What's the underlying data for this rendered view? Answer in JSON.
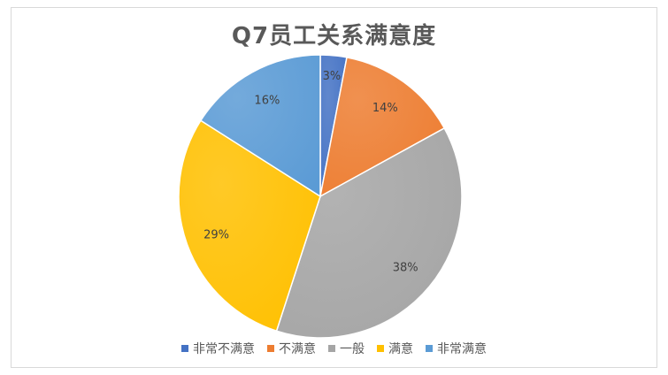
{
  "chart_data": {
    "type": "pie",
    "title": "Q7员工关系满意度",
    "categories": [
      "非常不满意",
      "不满意",
      "一般",
      "满意",
      "非常满意"
    ],
    "values": [
      3,
      14,
      38,
      29,
      16
    ],
    "labels": [
      "3%",
      "14%",
      "38%",
      "29%",
      "16%"
    ],
    "colors": [
      "#4472c4",
      "#ed7d31",
      "#a5a5a5",
      "#ffc000",
      "#5b9bd5"
    ],
    "legend_position": "bottom"
  }
}
